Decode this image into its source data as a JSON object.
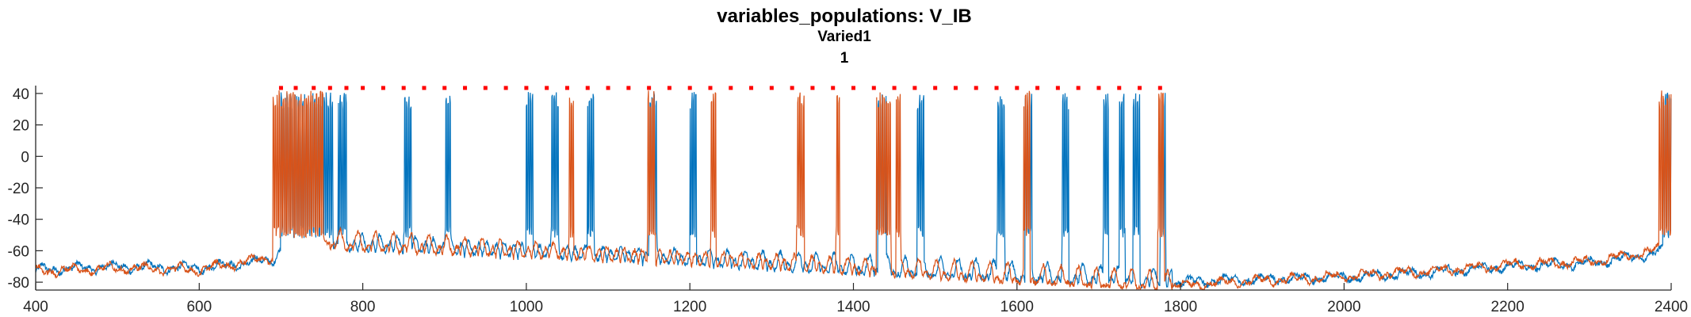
{
  "chart_data": {
    "type": "line",
    "title": "variables_populations: V_IB",
    "subtitle_lines": [
      "Varied1",
      "1"
    ],
    "xlabel": "",
    "ylabel": "",
    "xlim": [
      400,
      2400
    ],
    "ylim": [
      -85,
      45
    ],
    "xticks": [
      400,
      600,
      800,
      1000,
      1200,
      1400,
      1600,
      1800,
      2000,
      2200,
      2400
    ],
    "yticks": [
      40,
      20,
      0,
      -20,
      -40,
      -60,
      -80
    ],
    "grid": false,
    "legend": "none",
    "colors": {
      "series1": "#0072BD",
      "series2": "#D95319",
      "markers": "#FF0000",
      "axis": "#262626"
    },
    "series": [
      {
        "color": "#0072BD",
        "baseline": [
          [
            400,
            -72
          ],
          [
            500,
            -70
          ],
          [
            600,
            -71
          ],
          [
            690,
            -66
          ],
          [
            700,
            -58
          ],
          [
            760,
            -56
          ],
          [
            1800,
            -80
          ],
          [
            1900,
            -78
          ],
          [
            2000,
            -77
          ],
          [
            2100,
            -74
          ],
          [
            2200,
            -70
          ],
          [
            2300,
            -68
          ],
          [
            2380,
            -62
          ],
          [
            2400,
            -58
          ]
        ],
        "bursts": [
          [
            700,
            764
          ],
          [
            770,
            780
          ],
          [
            850,
            860
          ],
          [
            900,
            908
          ],
          [
            1000,
            1008
          ],
          [
            1030,
            1040
          ],
          [
            1075,
            1083
          ],
          [
            1150,
            1160
          ],
          [
            1200,
            1208
          ],
          [
            1430,
            1440
          ],
          [
            1478,
            1486
          ],
          [
            1575,
            1585
          ],
          [
            1610,
            1618
          ],
          [
            1655,
            1663
          ],
          [
            1705,
            1712
          ],
          [
            1725,
            1732
          ],
          [
            1742,
            1750
          ],
          [
            1775,
            1782
          ],
          [
            2390,
            2400
          ]
        ],
        "peak": 41
      },
      {
        "color": "#D95319",
        "baseline": [
          [
            400,
            -73
          ],
          [
            500,
            -71
          ],
          [
            600,
            -72
          ],
          [
            690,
            -64
          ],
          [
            700,
            -56
          ],
          [
            760,
            -55
          ],
          [
            1800,
            -82
          ],
          [
            1900,
            -79
          ],
          [
            2000,
            -76
          ],
          [
            2100,
            -73
          ],
          [
            2200,
            -69
          ],
          [
            2300,
            -67
          ],
          [
            2380,
            -60
          ],
          [
            2400,
            -56
          ]
        ],
        "bursts": [
          [
            690,
            752
          ],
          [
            1052,
            1058
          ],
          [
            1148,
            1158
          ],
          [
            1225,
            1232
          ],
          [
            1330,
            1340
          ],
          [
            1378,
            1383
          ],
          [
            1428,
            1446
          ],
          [
            1452,
            1458
          ],
          [
            1608,
            1616
          ],
          [
            1772,
            1780
          ],
          [
            2385,
            2400
          ]
        ],
        "peak": 42
      }
    ],
    "spike_markers": {
      "y": 43.5,
      "x": [
        700,
        718,
        740,
        760,
        780,
        800,
        825,
        850,
        875,
        900,
        925,
        950,
        975,
        1000,
        1025,
        1050,
        1075,
        1100,
        1125,
        1150,
        1175,
        1200,
        1225,
        1250,
        1275,
        1300,
        1325,
        1350,
        1375,
        1400,
        1425,
        1450,
        1475,
        1500,
        1525,
        1550,
        1575,
        1600,
        1625,
        1650,
        1675,
        1700,
        1725,
        1750,
        1775
      ]
    }
  }
}
